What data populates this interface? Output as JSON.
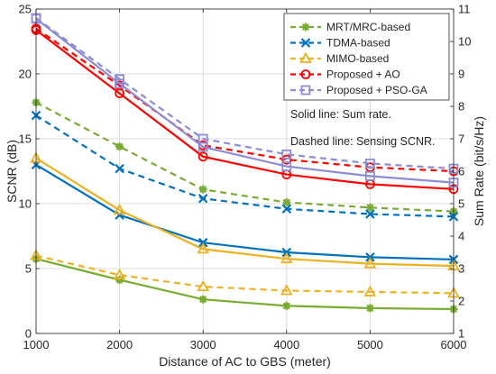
{
  "chart_data": {
    "type": "line",
    "x": [
      1000,
      2000,
      3000,
      4000,
      5000,
      6000
    ],
    "xlabel": "Distance of AC to GBS (meter)",
    "xlim": [
      1000,
      6000
    ],
    "xticks": [
      1000,
      2000,
      3000,
      4000,
      5000,
      6000
    ],
    "ylabel_left": "SCNR (dB)",
    "ylim_left": [
      0,
      25
    ],
    "yticks_left": [
      0,
      5,
      10,
      15,
      20,
      25
    ],
    "ylabel_right": "Sum Rate (bit/s/Hz)",
    "ylim_right": [
      1,
      11
    ],
    "yticks_right": [
      1,
      2,
      3,
      4,
      5,
      6,
      7,
      8,
      9,
      10,
      11
    ],
    "grid": true,
    "legend_position": "top-right",
    "annotations": [
      "Solid line: Sum rate.",
      "Dashed line: Sensing SCNR."
    ],
    "series": [
      {
        "name": "MRT/MRC-based",
        "color": "#77AC30",
        "marker": "asterisk",
        "sensing_scnr_dB": [
          17.8,
          14.4,
          11.1,
          10.1,
          9.7,
          9.4
        ],
        "sum_rate": [
          3.3,
          2.65,
          2.05,
          1.85,
          1.78,
          1.75
        ]
      },
      {
        "name": "TDMA-based",
        "color": "#0072BD",
        "marker": "x",
        "sensing_scnr_dB": [
          16.8,
          12.7,
          10.4,
          9.6,
          9.2,
          9.0
        ],
        "sum_rate": [
          6.2,
          4.65,
          3.8,
          3.5,
          3.35,
          3.28
        ]
      },
      {
        "name": "MIMO-based",
        "color": "#EDB120",
        "marker": "triangle",
        "sensing_scnr_dB": [
          6.0,
          4.5,
          3.6,
          3.3,
          3.2,
          3.1
        ],
        "sum_rate": [
          6.4,
          4.8,
          3.6,
          3.3,
          3.15,
          3.08
        ]
      },
      {
        "name": "Proposed + AO",
        "color": "#FF0000",
        "marker": "circle",
        "sensing_scnr_dB": [
          23.5,
          19.1,
          14.5,
          13.4,
          12.8,
          12.5
        ],
        "sum_rate": [
          10.35,
          8.4,
          6.45,
          5.9,
          5.6,
          5.45
        ]
      },
      {
        "name": "Proposed + PSO-GA",
        "color": "#8C8CD6",
        "marker": "square",
        "sensing_scnr_dB": [
          24.3,
          19.6,
          15.0,
          13.8,
          13.1,
          12.7
        ],
        "sum_rate": [
          10.7,
          8.7,
          6.75,
          6.15,
          5.85,
          5.65
        ]
      }
    ]
  }
}
